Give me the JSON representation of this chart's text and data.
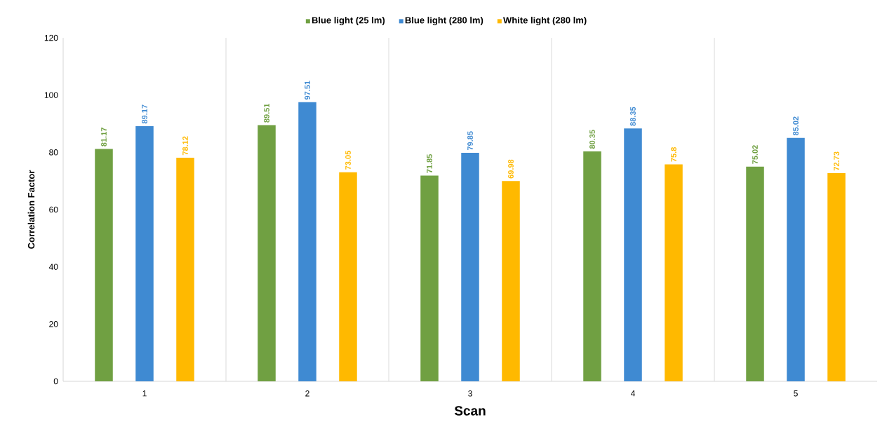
{
  "chart_data": {
    "type": "bar",
    "xlabel": "Scan",
    "ylabel": "Correlation Factor",
    "categories": [
      "1",
      "2",
      "3",
      "4",
      "5"
    ],
    "series": [
      {
        "name": "Blue light (25 lm)",
        "color": "#70a042",
        "values": [
          81.17,
          89.51,
          71.85,
          80.35,
          75.02
        ],
        "value_labels": [
          "81.17",
          "89.51",
          "71.85",
          "80.35",
          "75.02"
        ]
      },
      {
        "name": "Blue light (280 lm)",
        "color": "#3f8ad2",
        "values": [
          89.17,
          97.51,
          79.85,
          88.35,
          85.02
        ],
        "value_labels": [
          "89.17",
          "97.51",
          "79.85",
          "88.35",
          "85.02"
        ]
      },
      {
        "name": "White light (280 lm)",
        "color": "#ffb900",
        "values": [
          78.12,
          73.05,
          69.98,
          75.8,
          72.73
        ],
        "value_labels": [
          "78.12",
          "73.05",
          "69.98",
          "75.8",
          "72.73"
        ]
      }
    ],
    "ylim": [
      0,
      120
    ],
    "yticks": [
      0,
      20,
      40,
      60,
      80,
      100,
      120
    ],
    "grid": "x",
    "legend": "top"
  }
}
